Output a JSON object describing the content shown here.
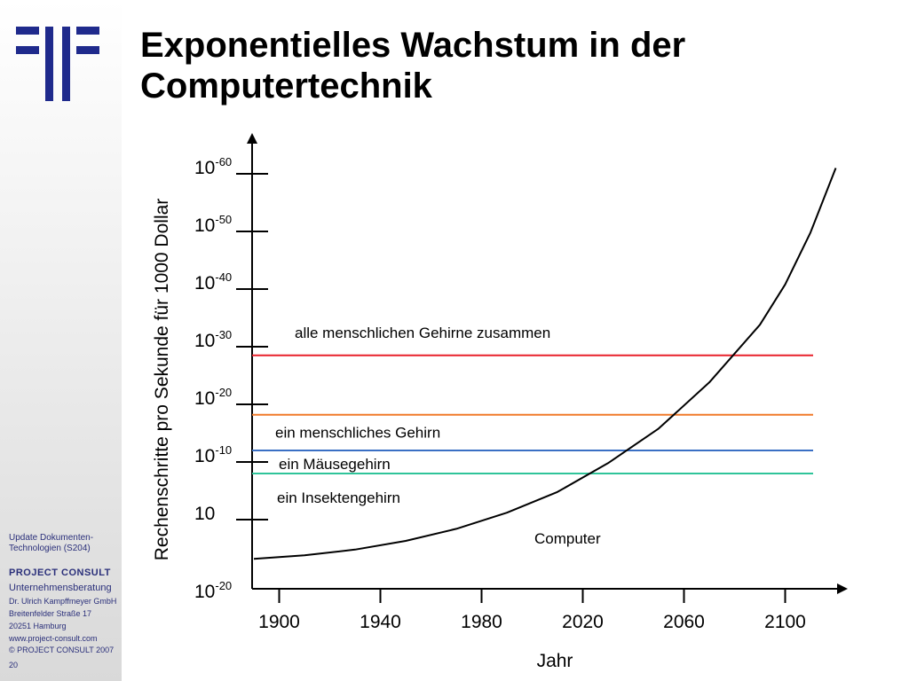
{
  "slide": {
    "title_line1": "Exponentielles Wachstum in der",
    "title_line2": "Computertechnik",
    "page_number": "20"
  },
  "sidebar": {
    "course_line1": "Update Dokumenten-",
    "course_line2": "Technologien (S204)",
    "brand": "PROJECT CONSULT",
    "subtitle": "Unternehmensberatung",
    "contact": [
      "Dr. Ulrich Kampffmeyer GmbH",
      "Breitenfelder Straße 17",
      "20251 Hamburg",
      "www.project-consult.com",
      "© PROJECT CONSULT 2007"
    ],
    "logo_color": "#1f2a8c"
  },
  "chart_data": {
    "type": "line",
    "xlabel": "Jahr",
    "ylabel": "Rechenschritte pro Sekunde für 1000 Dollar",
    "x_ticks": [
      "1900",
      "1940",
      "1980",
      "2020",
      "2060",
      "2100"
    ],
    "y_ticks": [
      {
        "base": "10",
        "exp": "-20"
      },
      {
        "base": "10",
        "exp": ""
      },
      {
        "base": "10",
        "exp": "-10"
      },
      {
        "base": "10",
        "exp": "-20"
      },
      {
        "base": "10",
        "exp": "-30"
      },
      {
        "base": "10",
        "exp": "-40"
      },
      {
        "base": "10",
        "exp": "-50"
      },
      {
        "base": "10",
        "exp": "-60"
      }
    ],
    "y_tick_values": [
      -1.2,
      0,
      1,
      2,
      3,
      4,
      5,
      6
    ],
    "xlim": [
      1890,
      2125
    ],
    "ylim": [
      -1.2,
      7
    ],
    "thresholds": [
      {
        "label": "alle menschlichen Gehirne zusammen",
        "y": 2.85,
        "color": "#e8202a"
      },
      {
        "label": "ein menschliches Gehirn",
        "y": 1.82,
        "color": "#f07a2a"
      },
      {
        "label": "ein Mäusegehirn",
        "y": 1.2,
        "color": "#3a6fc4"
      },
      {
        "label": "ein Insektengehirn",
        "y": 0.8,
        "color": "#2fc49a"
      }
    ],
    "series": [
      {
        "name": "Computer",
        "x": [
          1890,
          1910,
          1930,
          1950,
          1970,
          1990,
          2010,
          2030,
          2050,
          2070,
          2090,
          2100,
          2110,
          2120
        ],
        "y": [
          -0.68,
          -0.62,
          -0.52,
          -0.37,
          -0.16,
          0.12,
          0.48,
          0.98,
          1.58,
          2.38,
          3.38,
          4.08,
          4.98,
          6.1
        ]
      }
    ]
  }
}
